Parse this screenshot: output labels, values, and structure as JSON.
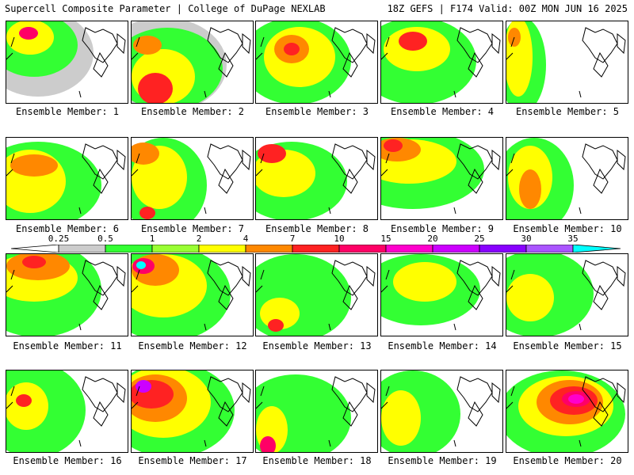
{
  "header": {
    "title_left": "Supercell Composite Parameter | College of DuPage NEXLAB",
    "title_right": "18Z GEFS | F174 Valid: 00Z MON JUN 16 2025"
  },
  "colorbar": {
    "ticks": [
      "0.25",
      "0.5",
      "1",
      "2",
      "4",
      "7",
      "10",
      "15",
      "20",
      "25",
      "30",
      "35"
    ],
    "colors": [
      "#cccccc",
      "#33ff33",
      "#99ff33",
      "#ffff00",
      "#ff8800",
      "#ff2222",
      "#ff0066",
      "#ff00cc",
      "#cc00ff",
      "#8800ff",
      "#aa55ff",
      "#00ffff"
    ]
  },
  "panels": [
    {
      "label": "Ensemble Member: 1"
    },
    {
      "label": "Ensemble Member: 2"
    },
    {
      "label": "Ensemble Member: 3"
    },
    {
      "label": "Ensemble Member: 4"
    },
    {
      "label": "Ensemble Member: 5"
    },
    {
      "label": "Ensemble Member: 6"
    },
    {
      "label": "Ensemble Member: 7"
    },
    {
      "label": "Ensemble Member: 8"
    },
    {
      "label": "Ensemble Member: 9"
    },
    {
      "label": "Ensemble Member: 10"
    },
    {
      "label": "Ensemble Member: 11"
    },
    {
      "label": "Ensemble Member: 12"
    },
    {
      "label": "Ensemble Member: 13"
    },
    {
      "label": "Ensemble Member: 14"
    },
    {
      "label": "Ensemble Member: 15"
    },
    {
      "label": "Ensemble Member: 16"
    },
    {
      "label": "Ensemble Member: 17"
    },
    {
      "label": "Ensemble Member: 18"
    },
    {
      "label": "Ensemble Member: 19"
    },
    {
      "label": "Ensemble Member: 20"
    }
  ]
}
